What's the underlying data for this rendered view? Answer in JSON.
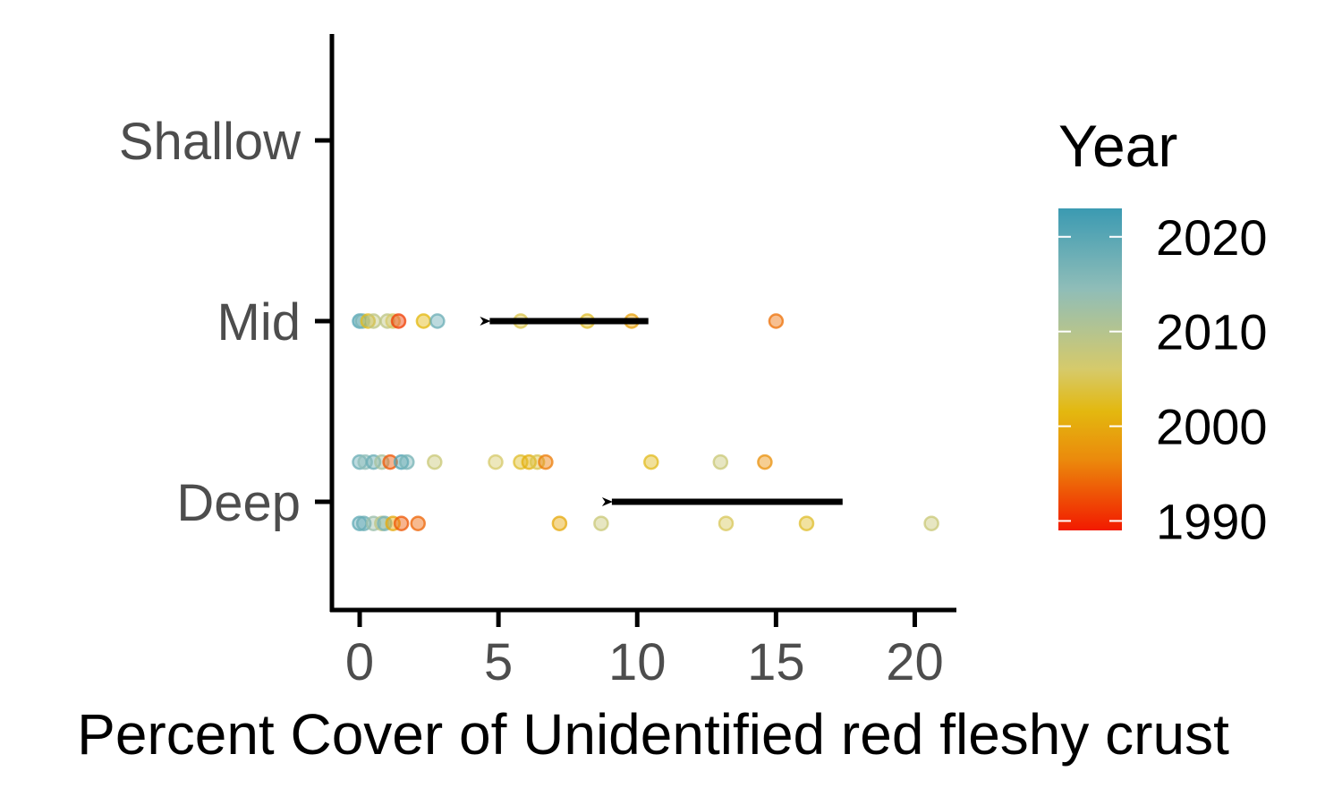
{
  "chart_data": {
    "type": "scatter",
    "title": "",
    "xlabel": "Percent Cover of Unidentified red fleshy crust",
    "ylabel": "",
    "xlim": [
      -1,
      21.5
    ],
    "x_ticks": [
      "0",
      "5",
      "10",
      "15",
      "20"
    ],
    "x_tick_values": [
      0,
      5,
      10,
      15,
      20
    ],
    "y_categories": [
      "Deep",
      "Mid",
      "Shallow"
    ],
    "grid": false,
    "legend": {
      "title": "Year",
      "type": "colorbar",
      "position": "right",
      "range": [
        1989,
        2023
      ],
      "labels": [
        "2020",
        "2010",
        "2000",
        "1990"
      ],
      "label_values": [
        2020,
        2010,
        2000,
        1990
      ],
      "colors": [
        "#3b9ab2",
        "#78b7c5",
        "#ebcc2a",
        "#e1af00",
        "#f21a00"
      ]
    },
    "series": [
      {
        "category": "Mid",
        "offset": 0,
        "points": [
          {
            "x": 0.0,
            "year": 2021
          },
          {
            "x": 0.1,
            "year": 2018
          },
          {
            "x": 0.3,
            "year": 2005
          },
          {
            "x": 0.5,
            "year": 2012
          },
          {
            "x": 1.0,
            "year": 2012
          },
          {
            "x": 1.2,
            "year": 2010
          },
          {
            "x": 1.4,
            "year": 1992
          },
          {
            "x": 2.3,
            "year": 2004
          },
          {
            "x": 2.8,
            "year": 2019
          },
          {
            "x": 5.8,
            "year": 2008
          },
          {
            "x": 8.2,
            "year": 2006
          },
          {
            "x": 9.8,
            "year": 2001
          },
          {
            "x": 15.0,
            "year": 1996
          }
        ]
      },
      {
        "category": "Deep",
        "offset": 0.22,
        "points": [
          {
            "x": 0.0,
            "year": 2019
          },
          {
            "x": 0.2,
            "year": 2016
          },
          {
            "x": 0.5,
            "year": 2019
          },
          {
            "x": 0.8,
            "year": 2014
          },
          {
            "x": 1.1,
            "year": 1994
          },
          {
            "x": 1.5,
            "year": 2021
          },
          {
            "x": 1.7,
            "year": 2018
          },
          {
            "x": 2.7,
            "year": 2011
          },
          {
            "x": 4.9,
            "year": 2010
          },
          {
            "x": 5.8,
            "year": 2006
          },
          {
            "x": 6.1,
            "year": 2003
          },
          {
            "x": 6.4,
            "year": 2008
          },
          {
            "x": 6.7,
            "year": 1997
          },
          {
            "x": 10.5,
            "year": 2005
          },
          {
            "x": 13.0,
            "year": 2011
          },
          {
            "x": 14.6,
            "year": 1999
          }
        ]
      },
      {
        "category": "Deep",
        "offset": -0.12,
        "points": [
          {
            "x": 0.0,
            "year": 2020
          },
          {
            "x": 0.15,
            "year": 2019
          },
          {
            "x": 0.5,
            "year": 2015
          },
          {
            "x": 0.8,
            "year": 2012
          },
          {
            "x": 0.9,
            "year": 2018
          },
          {
            "x": 1.2,
            "year": 2002
          },
          {
            "x": 1.5,
            "year": 1994
          },
          {
            "x": 2.1,
            "year": 1995
          },
          {
            "x": 7.2,
            "year": 2002
          },
          {
            "x": 8.7,
            "year": 2011
          },
          {
            "x": 13.2,
            "year": 2009
          },
          {
            "x": 16.1,
            "year": 2006
          },
          {
            "x": 20.6,
            "year": 2011
          }
        ]
      }
    ],
    "annotations": [
      {
        "type": "arrow",
        "category": "Mid",
        "x_from": 10.4,
        "x_to": 4.3
      },
      {
        "type": "arrow",
        "category": "Deep",
        "x_from": 17.4,
        "x_to": 8.7
      }
    ]
  }
}
